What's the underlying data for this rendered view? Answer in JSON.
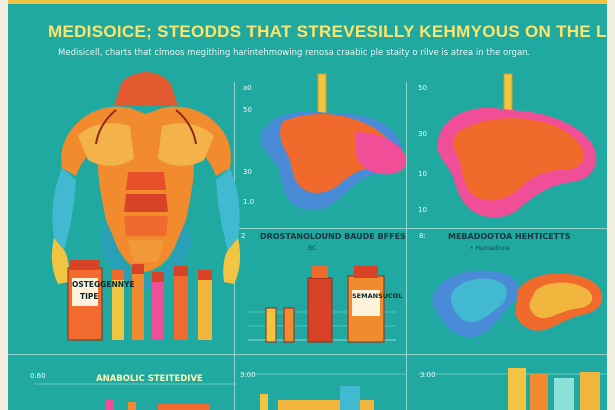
{
  "title": "MEDISOICE; STEODDS THAT STREVESILLY KEHMYOUS ON THE LIVER",
  "subtitle": "Medisicell, charts that clmoos megithing harintehmowing renosa craabic ple staity o rilve is atrea in the organ.",
  "panel_labels": {
    "liver_panel_1_top_axis": "a0",
    "liver_panel_2_top_axis": "50",
    "liver_panel_2_axis_1": "30",
    "liver_panel_2_axis_2": "10",
    "liver_panel_2_axis_3": "10",
    "liver_panel_1_axis_1": "50",
    "liver_panel_1_axis_2": "30",
    "liver_panel_1_axis_3": "1.0",
    "mid_left_number": "2",
    "mid_right_number": "8:",
    "mid_section_title": "DROSTANOLOUND BAUDE BFFES",
    "mid_section_sub": "BC",
    "right_section_title": "MEBADOOTOA    HEHTICETTS",
    "right_section_sub": "• Humadinne",
    "bottom_left_number": "0.60",
    "bottom_mid_number": "3.00",
    "bottom_right_number": "3.00",
    "bottom_left_title": "ANABOLIC STEITEDIVE",
    "vial_label_left": "OSTEGGENNYE",
    "vial_label_left_2": "TIPE",
    "bottle_label_right": "SEMANSUCOL"
  },
  "colors": {
    "background": "#1fa9a1",
    "title": "#ffe46a",
    "divider": "#a6ddd6"
  },
  "icons": {
    "torso": "muscular-torso-illustration",
    "liver": "liver-illustration",
    "vials": "medicine-vials-illustration",
    "bars": "bar-chart-illustration"
  }
}
